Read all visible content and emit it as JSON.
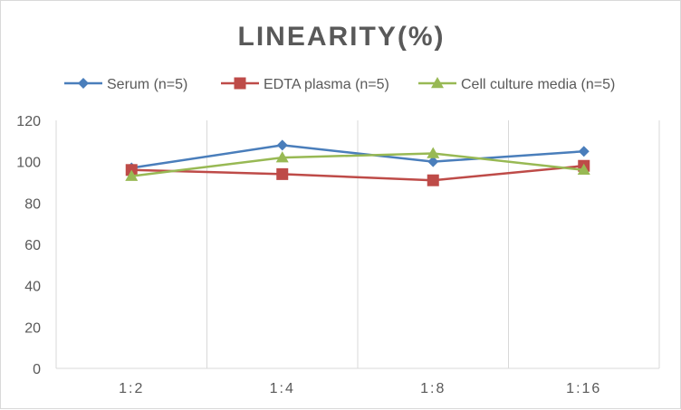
{
  "chart_data": {
    "type": "line",
    "title": "LINEARITY(%)",
    "xlabel": "",
    "ylabel": "",
    "categories": [
      "1:2",
      "1:4",
      "1:8",
      "1:16"
    ],
    "ylim": [
      0,
      120
    ],
    "yticks": [
      0,
      20,
      40,
      60,
      80,
      100,
      120
    ],
    "grid": "vertical",
    "legend_position": "top",
    "series": [
      {
        "name": "Serum (n=5)",
        "values": [
          97,
          108,
          100,
          105
        ],
        "color": "#4a7ebb",
        "marker": "diamond"
      },
      {
        "name": "EDTA plasma (n=5)",
        "values": [
          96,
          94,
          91,
          98
        ],
        "color": "#be4b48",
        "marker": "square"
      },
      {
        "name": "Cell culture media (n=5)",
        "values": [
          93,
          102,
          104,
          96
        ],
        "color": "#98b954",
        "marker": "triangle"
      }
    ]
  }
}
